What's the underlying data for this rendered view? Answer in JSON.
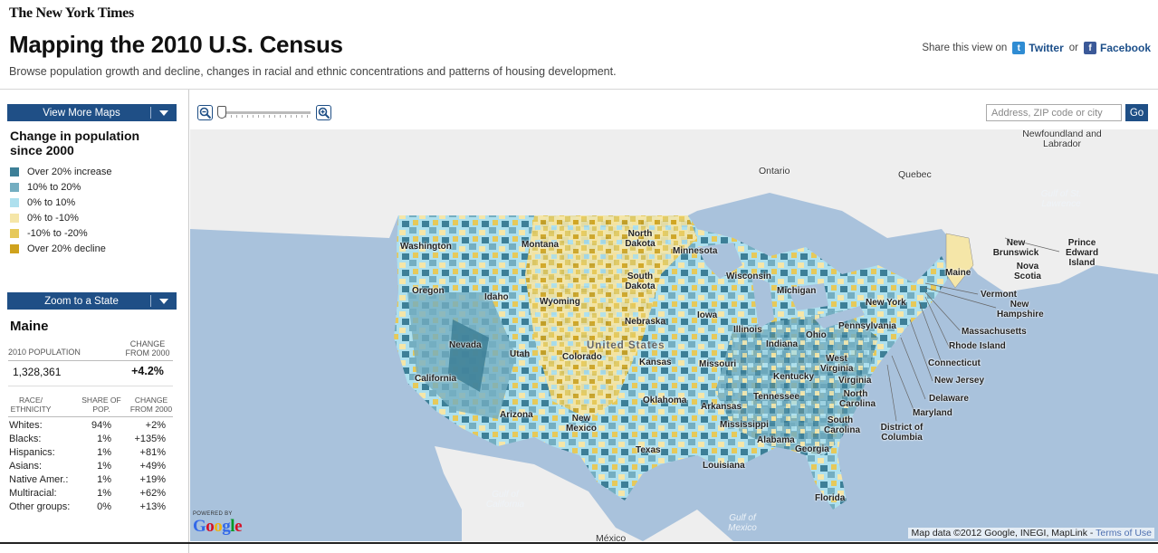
{
  "header": {
    "masthead": "The New York Times",
    "title": "Mapping the 2010 U.S. Census",
    "subtitle": "Browse population growth and decline, changes in racial and ethnic concentrations and patterns of housing development.",
    "share_prefix": "Share this view on",
    "twitter": "Twitter",
    "or": "or",
    "facebook": "Facebook"
  },
  "sidebar": {
    "view_more": "View More Maps",
    "legend_title": "Change in population since 2000",
    "legend": [
      {
        "label": "Over 20% increase",
        "color": "#3d7f97"
      },
      {
        "label": "10% to 20%",
        "color": "#74aec1"
      },
      {
        "label": "0% to 10%",
        "color": "#aee0ee"
      },
      {
        "label": "0% to -10%",
        "color": "#f5e6a8"
      },
      {
        "label": "-10% to -20%",
        "color": "#e6c95a"
      },
      {
        "label": "Over 20% decline",
        "color": "#cfa21d"
      }
    ],
    "zoom_state": "Zoom to a State",
    "state": {
      "name": "Maine",
      "pop_label": "2010 POPULATION",
      "change_label": "CHANGE FROM 2000",
      "population": "1,328,361",
      "change": "+4.2%",
      "race_header": {
        "col1": "RACE/ ETHNICITY",
        "col2": "SHARE OF POP.",
        "col3": "CHANGE FROM 2000"
      },
      "races": [
        {
          "name": "Whites:",
          "share": "94%",
          "change": "+2%"
        },
        {
          "name": "Blacks:",
          "share": "1%",
          "change": "+135%"
        },
        {
          "name": "Hispanics:",
          "share": "1%",
          "change": "+81%"
        },
        {
          "name": "Asians:",
          "share": "1%",
          "change": "+49%"
        },
        {
          "name": "Native Amer.:",
          "share": "1%",
          "change": "+19%"
        },
        {
          "name": "Multiracial:",
          "share": "1%",
          "change": "+62%"
        },
        {
          "name": "Other groups:",
          "share": "0%",
          "change": "+13%"
        }
      ]
    }
  },
  "toolbar": {
    "search_placeholder": "Address, ZIP code or city",
    "go": "Go"
  },
  "map": {
    "labels": {
      "ontario": "Ontario",
      "quebec": "Quebec",
      "newfoundland": "Newfoundland and Labrador",
      "gulf_stlawrence": "Gulf of St. Lawrence",
      "new_brunswick": "New Brunswick",
      "nova_scotia": "Nova Scotia",
      "pei": "Prince Edward Island",
      "washington": "Washington",
      "montana": "Montana",
      "north_dakota": "North Dakota",
      "minnesota": "Minnesota",
      "oregon": "Oregon",
      "idaho": "Idaho",
      "wyoming": "Wyoming",
      "south_dakota": "South Dakota",
      "wisconsin": "Wisconsin",
      "michigan": "Michigan",
      "maine": "Maine",
      "vermont": "Vermont",
      "new_hampshire": "New Hampshire",
      "massachusetts": "Massachusetts",
      "rhode_island": "Rhode Island",
      "connecticut": "Connecticut",
      "new_jersey": "New Jersey",
      "delaware": "Delaware",
      "maryland": "Maryland",
      "dc": "District of Columbia",
      "new_york": "New York",
      "pennsylvania": "Pennsylvania",
      "nevada": "Nevada",
      "utah": "Utah",
      "colorado": "Colorado",
      "nebraska": "Nebraska",
      "iowa": "Iowa",
      "illinois": "Illinois",
      "indiana": "Indiana",
      "ohio": "Ohio",
      "united_states": "United States",
      "kansas": "Kansas",
      "missouri": "Missouri",
      "west_virginia": "West Virginia",
      "virginia": "Virginia",
      "kentucky": "Kentucky",
      "california": "California",
      "arizona": "Arizona",
      "new_mexico": "New Mexico",
      "oklahoma": "Oklahoma",
      "arkansas": "Arkansas",
      "tennessee": "Tennessee",
      "north_carolina": "North Carolina",
      "south_carolina": "South Carolina",
      "mississippi": "Mississippi",
      "alabama": "Alabama",
      "georgia": "Georgia",
      "texas": "Texas",
      "louisiana": "Louisiana",
      "florida": "Florida",
      "gulf_california": "Gulf of California",
      "gulf_mexico": "Gulf of Mexico",
      "mexico": "México"
    },
    "powered_by": "POWERED BY",
    "google": "Google",
    "attribution": "Map data ©2012  Google, INEGI, MapLink - ",
    "terms": "Terms of Use"
  }
}
